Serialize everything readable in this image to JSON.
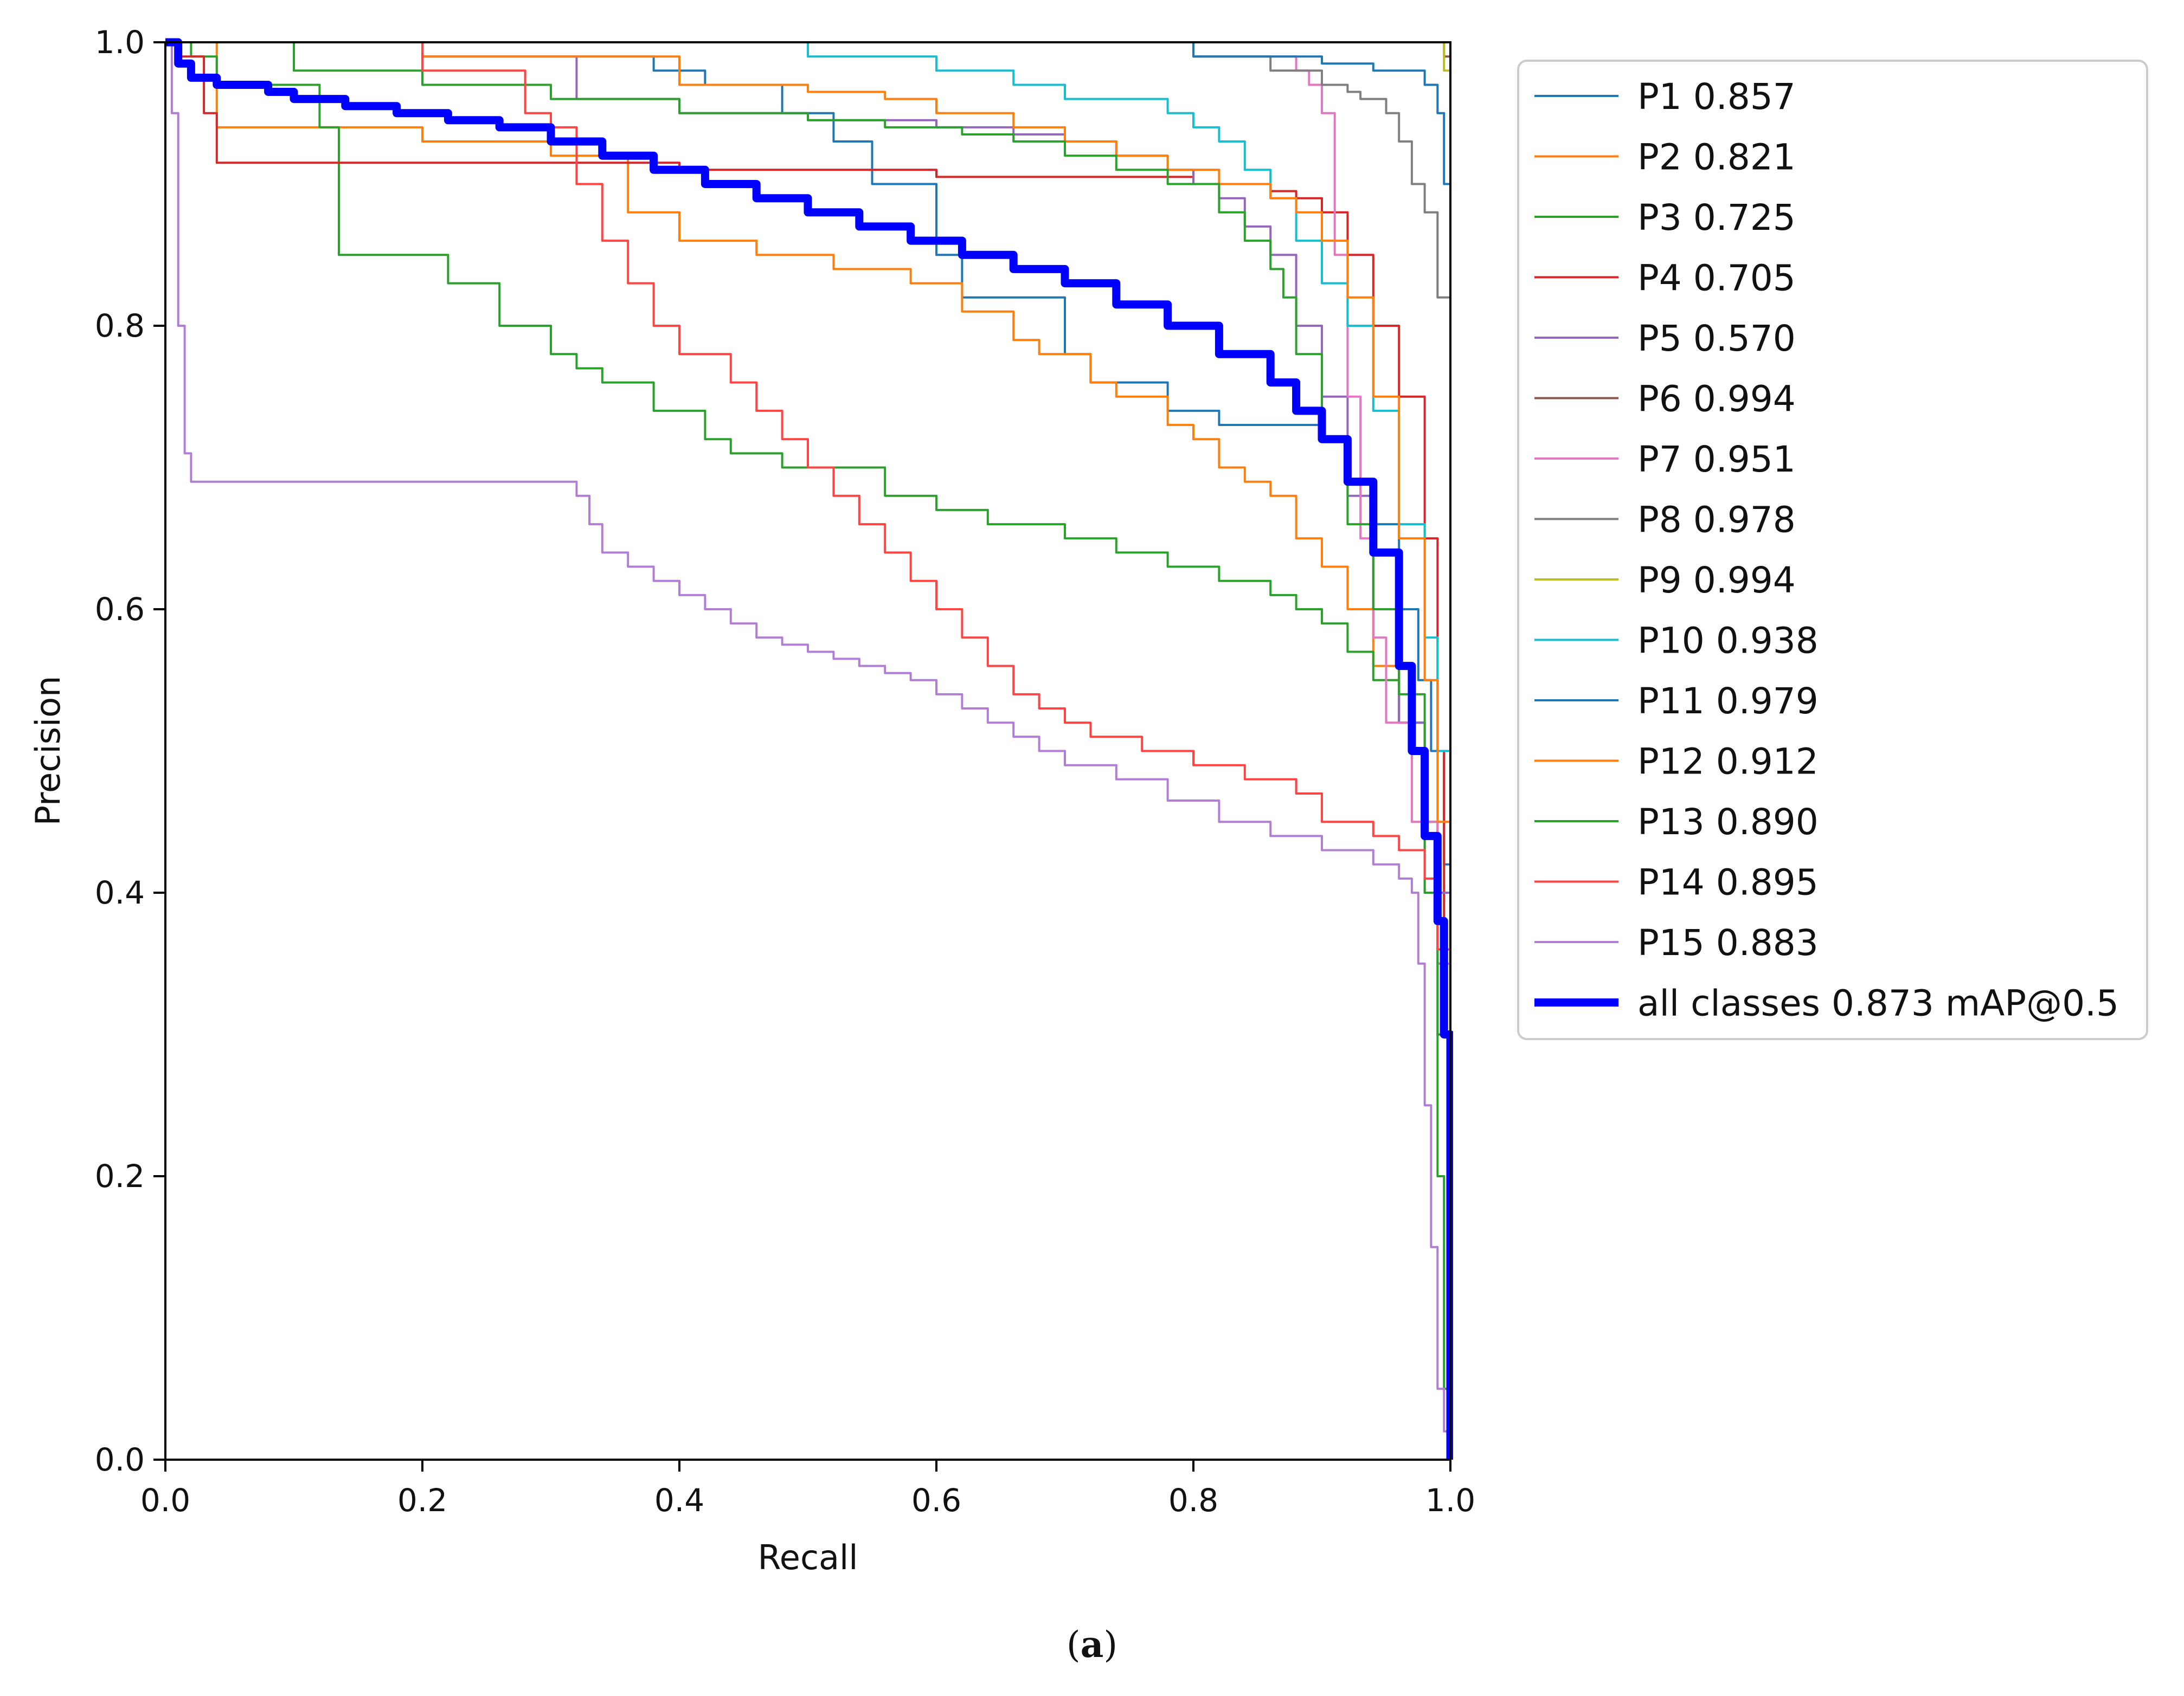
{
  "caption": {
    "open": "(",
    "letter": "a",
    "close": ")"
  },
  "chart_data": {
    "type": "line",
    "xlabel": "Recall",
    "ylabel": "Precision",
    "xlim": [
      0,
      1
    ],
    "ylim": [
      0,
      1
    ],
    "xticks": [
      "0.0",
      "0.2",
      "0.4",
      "0.6",
      "0.8",
      "1.0"
    ],
    "yticks": [
      "0.0",
      "0.2",
      "0.4",
      "0.6",
      "0.8",
      "1.0"
    ],
    "grid": false,
    "legend_position": "outside-right-top",
    "series": [
      {
        "name": "P1 0.857",
        "color": "#1f77b4",
        "width": 4,
        "x": [
          0,
          0.2,
          0.3,
          0.38,
          0.42,
          0.48,
          0.52,
          0.55,
          0.6,
          0.62,
          0.66,
          0.7,
          0.72,
          0.78,
          0.82,
          0.86,
          0.9,
          0.92,
          0.94,
          0.96,
          0.975,
          0.985,
          0.995,
          1.0
        ],
        "y": [
          1,
          0.99,
          0.99,
          0.98,
          0.97,
          0.95,
          0.93,
          0.9,
          0.85,
          0.82,
          0.82,
          0.78,
          0.76,
          0.74,
          0.73,
          0.73,
          0.72,
          0.69,
          0.66,
          0.6,
          0.55,
          0.5,
          0.42,
          0.0
        ]
      },
      {
        "name": "P2 0.821",
        "color": "#ff7f0e",
        "width": 4,
        "x": [
          0,
          0.03,
          0.04,
          0.1,
          0.2,
          0.3,
          0.36,
          0.4,
          0.46,
          0.52,
          0.58,
          0.62,
          0.66,
          0.68,
          0.72,
          0.74,
          0.78,
          0.8,
          0.82,
          0.84,
          0.86,
          0.88,
          0.9,
          0.92,
          0.94,
          0.96,
          0.98,
          0.99,
          1.0
        ],
        "y": [
          1,
          1,
          0.94,
          0.94,
          0.93,
          0.92,
          0.88,
          0.86,
          0.85,
          0.84,
          0.83,
          0.81,
          0.79,
          0.78,
          0.76,
          0.75,
          0.73,
          0.72,
          0.7,
          0.69,
          0.68,
          0.65,
          0.63,
          0.6,
          0.56,
          0.52,
          0.45,
          0.35,
          0.0
        ]
      },
      {
        "name": "P3 0.725",
        "color": "#2ca02c",
        "width": 4,
        "x": [
          0,
          0.02,
          0.04,
          0.1,
          0.12,
          0.135,
          0.2,
          0.22,
          0.26,
          0.3,
          0.32,
          0.34,
          0.38,
          0.42,
          0.44,
          0.48,
          0.52,
          0.56,
          0.6,
          0.64,
          0.7,
          0.74,
          0.78,
          0.82,
          0.86,
          0.88,
          0.9,
          0.92,
          0.94,
          0.96,
          0.98,
          0.99,
          1.0
        ],
        "y": [
          1,
          0.99,
          0.97,
          0.97,
          0.94,
          0.85,
          0.85,
          0.83,
          0.8,
          0.78,
          0.77,
          0.76,
          0.74,
          0.72,
          0.71,
          0.7,
          0.7,
          0.68,
          0.67,
          0.66,
          0.65,
          0.64,
          0.63,
          0.62,
          0.61,
          0.6,
          0.59,
          0.57,
          0.55,
          0.52,
          0.45,
          0.3,
          0.0
        ]
      },
      {
        "name": "P4 0.705",
        "color": "#d62728",
        "width": 4,
        "x": [
          0,
          0.01,
          0.03,
          0.04,
          0.1,
          0.2,
          0.3,
          0.4,
          0.5,
          0.6,
          0.7,
          0.8,
          0.86,
          0.88,
          0.9,
          0.92,
          0.94,
          0.96,
          0.98,
          0.99,
          0.995,
          1.0
        ],
        "y": [
          1,
          0.99,
          0.95,
          0.915,
          0.915,
          0.915,
          0.915,
          0.91,
          0.91,
          0.905,
          0.905,
          0.9,
          0.895,
          0.89,
          0.88,
          0.85,
          0.8,
          0.75,
          0.65,
          0.5,
          0.3,
          0.0
        ]
      },
      {
        "name": "P5 0.570",
        "color": "#9467bd",
        "width": 4,
        "x": [
          0,
          0.2,
          0.32,
          0.4,
          0.5,
          0.6,
          0.66,
          0.7,
          0.74,
          0.78,
          0.8,
          0.82,
          0.84,
          0.86,
          0.88,
          0.9,
          0.92,
          0.94,
          0.96,
          0.98,
          1.0
        ],
        "y": [
          1,
          0.99,
          0.96,
          0.95,
          0.945,
          0.94,
          0.935,
          0.93,
          0.92,
          0.91,
          0.9,
          0.89,
          0.87,
          0.85,
          0.8,
          0.75,
          0.68,
          0.6,
          0.52,
          0.4,
          0.0
        ]
      },
      {
        "name": "P6 0.994",
        "color": "#8c564b",
        "width": 4,
        "x": [
          0,
          0.98,
          0.995,
          1.0
        ],
        "y": [
          1,
          1,
          0.99,
          0.0
        ]
      },
      {
        "name": "P7 0.951",
        "color": "#e377c2",
        "width": 4,
        "x": [
          0,
          0.6,
          0.8,
          0.86,
          0.88,
          0.89,
          0.9,
          0.91,
          0.92,
          0.93,
          0.94,
          0.95,
          0.97,
          0.99,
          1.0
        ],
        "y": [
          1,
          1,
          0.99,
          0.99,
          0.98,
          0.97,
          0.95,
          0.85,
          0.75,
          0.65,
          0.58,
          0.52,
          0.45,
          0.35,
          0.0
        ]
      },
      {
        "name": "P8 0.978",
        "color": "#7f7f7f",
        "width": 4,
        "x": [
          0,
          0.5,
          0.8,
          0.86,
          0.9,
          0.92,
          0.93,
          0.94,
          0.95,
          0.96,
          0.97,
          0.98,
          0.99,
          1.0
        ],
        "y": [
          1,
          1,
          0.99,
          0.98,
          0.97,
          0.965,
          0.96,
          0.96,
          0.95,
          0.93,
          0.9,
          0.88,
          0.82,
          0.0
        ]
      },
      {
        "name": "P9 0.994",
        "color": "#bcbd22",
        "width": 4,
        "x": [
          0,
          0.96,
          0.985,
          0.995,
          1.0
        ],
        "y": [
          1,
          1,
          1,
          0.98,
          0.0
        ]
      },
      {
        "name": "P10 0.938",
        "color": "#17becf",
        "width": 4,
        "x": [
          0,
          0.5,
          0.6,
          0.66,
          0.7,
          0.74,
          0.78,
          0.8,
          0.82,
          0.84,
          0.86,
          0.88,
          0.9,
          0.92,
          0.94,
          0.96,
          0.98,
          0.99,
          1.0
        ],
        "y": [
          1,
          0.99,
          0.98,
          0.97,
          0.96,
          0.96,
          0.95,
          0.94,
          0.93,
          0.91,
          0.89,
          0.86,
          0.83,
          0.8,
          0.74,
          0.66,
          0.58,
          0.5,
          0.0
        ]
      },
      {
        "name": "P11 0.979",
        "color": "#1f77b4",
        "width": 4,
        "x": [
          0,
          0.7,
          0.8,
          0.86,
          0.9,
          0.94,
          0.96,
          0.98,
          0.99,
          0.995,
          1.0
        ],
        "y": [
          1,
          1,
          0.99,
          0.99,
          0.985,
          0.98,
          0.98,
          0.97,
          0.95,
          0.9,
          0.0
        ]
      },
      {
        "name": "P12 0.912",
        "color": "#ff7f0e",
        "width": 4,
        "x": [
          0,
          0.2,
          0.4,
          0.5,
          0.56,
          0.6,
          0.66,
          0.7,
          0.74,
          0.78,
          0.82,
          0.86,
          0.88,
          0.9,
          0.92,
          0.94,
          0.96,
          0.98,
          0.99,
          1.0
        ],
        "y": [
          1,
          0.99,
          0.97,
          0.965,
          0.96,
          0.95,
          0.94,
          0.93,
          0.92,
          0.91,
          0.9,
          0.89,
          0.88,
          0.86,
          0.82,
          0.75,
          0.65,
          0.55,
          0.45,
          0.0
        ]
      },
      {
        "name": "P13 0.890",
        "color": "#2ca02c",
        "width": 4,
        "x": [
          0,
          0.1,
          0.2,
          0.3,
          0.4,
          0.5,
          0.56,
          0.62,
          0.66,
          0.7,
          0.74,
          0.78,
          0.82,
          0.84,
          0.86,
          0.87,
          0.88,
          0.9,
          0.92,
          0.94,
          0.96,
          0.98,
          0.99,
          0.995,
          1.0
        ],
        "y": [
          1,
          0.98,
          0.97,
          0.96,
          0.95,
          0.945,
          0.94,
          0.935,
          0.93,
          0.92,
          0.91,
          0.9,
          0.88,
          0.86,
          0.84,
          0.82,
          0.78,
          0.72,
          0.66,
          0.6,
          0.54,
          0.4,
          0.2,
          0.05,
          0.0
        ]
      },
      {
        "name": "P14 0.895",
        "color": "#ff4444",
        "width": 4,
        "x": [
          0,
          0.2,
          0.28,
          0.3,
          0.32,
          0.34,
          0.36,
          0.38,
          0.4,
          0.44,
          0.46,
          0.48,
          0.5,
          0.52,
          0.54,
          0.56,
          0.58,
          0.6,
          0.62,
          0.64,
          0.66,
          0.68,
          0.7,
          0.72,
          0.76,
          0.8,
          0.84,
          0.88,
          0.9,
          0.94,
          0.96,
          0.98,
          0.99,
          1.0
        ],
        "y": [
          1,
          0.98,
          0.95,
          0.94,
          0.9,
          0.86,
          0.83,
          0.8,
          0.78,
          0.76,
          0.74,
          0.72,
          0.7,
          0.68,
          0.66,
          0.64,
          0.62,
          0.6,
          0.58,
          0.56,
          0.54,
          0.53,
          0.52,
          0.51,
          0.5,
          0.49,
          0.48,
          0.47,
          0.45,
          0.44,
          0.43,
          0.41,
          0.36,
          0.0
        ]
      },
      {
        "name": "P15 0.883",
        "color": "#b07fd4",
        "width": 4,
        "x": [
          0,
          0.005,
          0.01,
          0.015,
          0.02,
          0.03,
          0.1,
          0.2,
          0.3,
          0.32,
          0.33,
          0.34,
          0.36,
          0.38,
          0.4,
          0.42,
          0.44,
          0.46,
          0.48,
          0.5,
          0.52,
          0.54,
          0.56,
          0.58,
          0.6,
          0.62,
          0.64,
          0.66,
          0.68,
          0.7,
          0.74,
          0.78,
          0.82,
          0.86,
          0.9,
          0.94,
          0.96,
          0.97,
          0.975,
          0.98,
          0.985,
          0.99,
          0.995,
          1.0
        ],
        "y": [
          1,
          0.95,
          0.8,
          0.71,
          0.69,
          0.69,
          0.69,
          0.69,
          0.69,
          0.68,
          0.66,
          0.64,
          0.63,
          0.62,
          0.61,
          0.6,
          0.59,
          0.58,
          0.575,
          0.57,
          0.565,
          0.56,
          0.555,
          0.55,
          0.54,
          0.53,
          0.52,
          0.51,
          0.5,
          0.49,
          0.48,
          0.465,
          0.45,
          0.44,
          0.43,
          0.42,
          0.41,
          0.4,
          0.35,
          0.25,
          0.15,
          0.05,
          0.02,
          0.0
        ]
      },
      {
        "name": "all classes 0.873 mAP@0.5",
        "color": "#0000ff",
        "width": 15,
        "x": [
          0,
          0.01,
          0.02,
          0.04,
          0.08,
          0.1,
          0.14,
          0.18,
          0.22,
          0.26,
          0.3,
          0.34,
          0.38,
          0.42,
          0.46,
          0.5,
          0.54,
          0.58,
          0.62,
          0.66,
          0.7,
          0.74,
          0.78,
          0.82,
          0.86,
          0.88,
          0.9,
          0.92,
          0.94,
          0.96,
          0.97,
          0.98,
          0.99,
          0.995,
          1.0
        ],
        "y": [
          1,
          0.985,
          0.975,
          0.97,
          0.965,
          0.96,
          0.955,
          0.95,
          0.945,
          0.94,
          0.93,
          0.92,
          0.91,
          0.9,
          0.89,
          0.88,
          0.87,
          0.86,
          0.85,
          0.84,
          0.83,
          0.815,
          0.8,
          0.78,
          0.76,
          0.74,
          0.72,
          0.69,
          0.64,
          0.56,
          0.5,
          0.44,
          0.38,
          0.3,
          0.0
        ]
      }
    ]
  }
}
